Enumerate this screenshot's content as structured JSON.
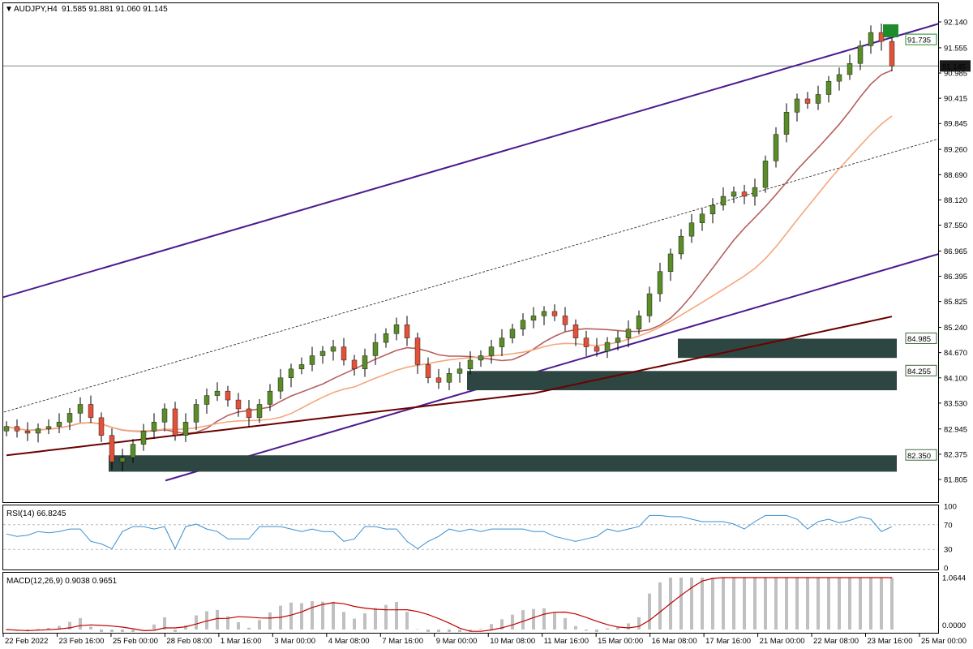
{
  "header": {
    "symbol": "AUDJPY,H4",
    "ohlc": "91.585 91.881 91.060 91.145"
  },
  "chart_data": [
    {
      "type": "candlestick",
      "symbol": "AUDJPY",
      "timeframe": "H4",
      "ylim": [
        81.805,
        92.14
      ],
      "price_ticks": [
        "92.140",
        "91.555",
        "90.985",
        "90.415",
        "89.845",
        "89.260",
        "88.690",
        "88.120",
        "87.550",
        "86.965",
        "86.395",
        "85.825",
        "85.240",
        "84.670",
        "84.100",
        "83.530",
        "82.945",
        "82.375",
        "81.805"
      ],
      "x_labels": [
        "22 Feb 2022",
        "23 Feb 16:00",
        "25 Feb 00:00",
        "28 Feb 08:00",
        "1 Mar 16:00",
        "3 Mar 00:00",
        "4 Mar 08:00",
        "7 Mar 16:00",
        "9 Mar 00:00",
        "10 Mar 08:00",
        "11 Mar 16:00",
        "15 Mar 00:00",
        "16 Mar 08:00",
        "17 Mar 16:00",
        "21 Mar 00:00",
        "22 Mar 08:00",
        "23 Mar 16:00",
        "25 Mar 00:00"
      ],
      "current_price": "91.145",
      "marked_price": "91.735",
      "close_series": [
        83.0,
        82.9,
        82.85,
        82.95,
        83.0,
        83.1,
        83.3,
        83.5,
        83.2,
        82.8,
        82.2,
        82.3,
        82.6,
        82.9,
        83.1,
        83.4,
        82.8,
        83.1,
        83.5,
        83.7,
        83.8,
        83.6,
        83.4,
        83.2,
        83.5,
        83.8,
        84.1,
        84.3,
        84.4,
        84.6,
        84.7,
        84.8,
        84.5,
        84.3,
        84.6,
        84.9,
        85.1,
        85.3,
        85.0,
        84.4,
        84.1,
        84.0,
        84.2,
        84.3,
        84.5,
        84.6,
        84.8,
        85.0,
        85.2,
        85.4,
        85.5,
        85.6,
        85.5,
        85.3,
        85.0,
        84.8,
        84.7,
        84.9,
        85.0,
        85.2,
        85.5,
        86.0,
        86.5,
        86.9,
        87.3,
        87.6,
        87.8,
        88.0,
        88.2,
        88.3,
        88.2,
        88.4,
        89.0,
        89.6,
        90.1,
        90.4,
        90.3,
        90.5,
        90.8,
        90.95,
        91.2,
        91.6,
        91.9,
        91.7,
        91.145
      ],
      "trend_lines": [
        {
          "name": "upper channel",
          "color": "#4b1a8f",
          "from": [
            0,
            85.9
          ],
          "to": [
            1158,
            92.1
          ]
        },
        {
          "name": "lower channel",
          "color": "#4b1a8f",
          "from": [
            204,
            81.78
          ],
          "to": [
            1158,
            86.9
          ]
        },
        {
          "name": "middle channel",
          "color": "#1a1a1a",
          "dashed": true,
          "from": [
            0,
            83.3
          ],
          "to": [
            1158,
            89.5
          ]
        }
      ],
      "moving_averages": [
        {
          "name": "MA fast",
          "color": "#b56060"
        },
        {
          "name": "MA medium",
          "color": "#f4a77e"
        },
        {
          "name": "MA slow",
          "color": "#6b0000"
        }
      ],
      "zones": [
        {
          "label": "84.985",
          "top": 84.985,
          "bottom": 84.55,
          "from_index": 64
        },
        {
          "label": "84.255",
          "top": 84.255,
          "bottom": 83.82,
          "from_index": 44
        },
        {
          "label": "82.350",
          "top": 82.35,
          "bottom": 81.98,
          "from_index": 10
        }
      ],
      "colors": {
        "bull": "#5b8c2a",
        "bear": "#e0523a",
        "zone": "#2d4641",
        "channel": "#4b1a8f",
        "rsi": "#3a8fd0",
        "macd_signal": "#c00000",
        "macd_hist": "#c0c0c0"
      }
    },
    {
      "type": "line",
      "title": "RSI(14) 66.8245",
      "ylim": [
        0,
        100
      ],
      "ticks": [
        "100",
        "70",
        "30",
        "0"
      ],
      "levels": [
        70,
        30
      ],
      "current": 66.8245
    },
    {
      "type": "bar",
      "title": "MACD(12,26,9) 0.9038 0.9651",
      "ticks": [
        "1.0644",
        "0.0000"
      ],
      "macd": 0.9038,
      "signal": 0.9651,
      "ylim": [
        0,
        1.0644
      ]
    }
  ]
}
